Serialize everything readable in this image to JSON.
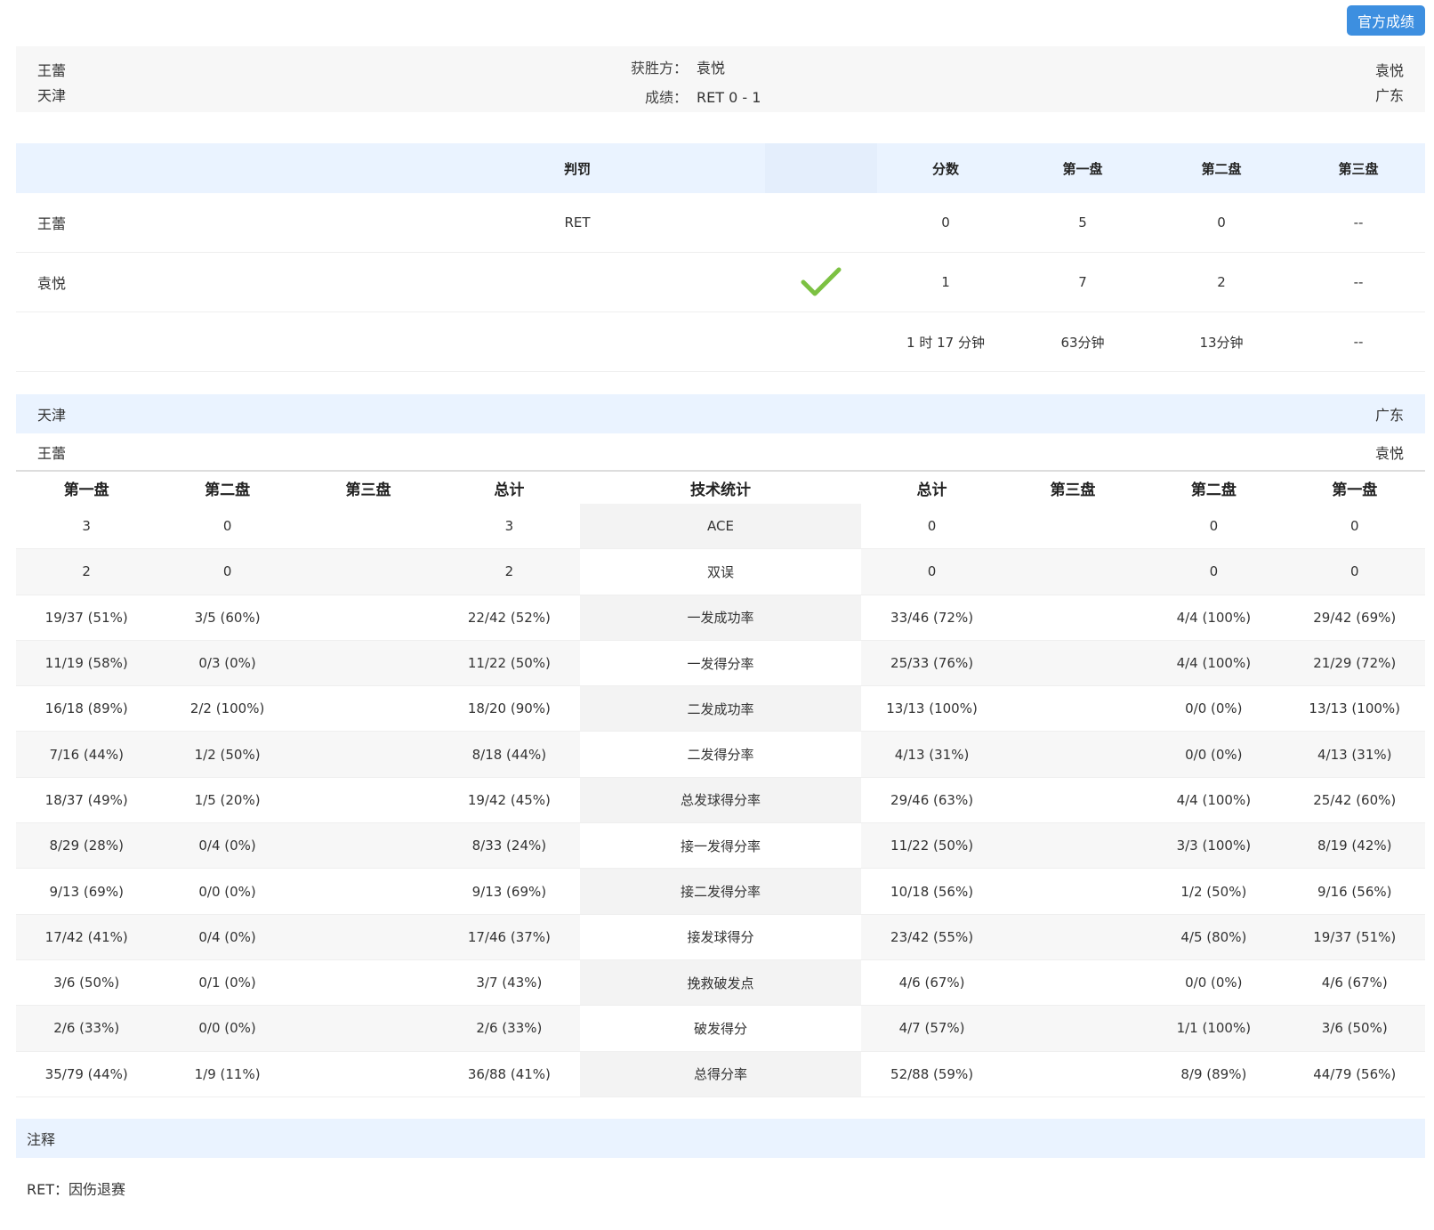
{
  "header": {
    "official_button": "官方成绩"
  },
  "summary": {
    "left_player": "王蕾",
    "left_team": "天津",
    "right_player": "袁悦",
    "right_team": "广东",
    "winner_label": "获胜方：",
    "winner_value": "袁悦",
    "result_label": "成绩：",
    "result_value": "RET 0 - 1"
  },
  "score_table": {
    "headers": {
      "penalty": "判罚",
      "points": "分数",
      "set1": "第一盘",
      "set2": "第二盘",
      "set3": "第三盘"
    },
    "rows": [
      {
        "name": "王蕾",
        "penalty": "RET",
        "points": "0",
        "set1": "5",
        "set2": "0",
        "set3": "--",
        "winner": false
      },
      {
        "name": "袁悦",
        "penalty": "",
        "points": "1",
        "set1": "7",
        "set2": "2",
        "set3": "--",
        "winner": true
      }
    ],
    "durations": {
      "total": "1 时 17 分钟",
      "set1": "63分钟",
      "set2": "13分钟",
      "set3": "--"
    },
    "check_color": "#7cc142"
  },
  "stats": {
    "left_team": "天津",
    "right_team": "广东",
    "left_player": "王蕾",
    "right_player": "袁悦",
    "headers": [
      "第一盘",
      "第二盘",
      "第三盘",
      "总计",
      "技术统计",
      "总计",
      "第三盘",
      "第二盘",
      "第一盘"
    ],
    "rows": [
      [
        "3",
        "0",
        "",
        "3",
        "ACE",
        "0",
        "",
        "0",
        "0"
      ],
      [
        "2",
        "0",
        "",
        "2",
        "双误",
        "0",
        "",
        "0",
        "0"
      ],
      [
        "19/37 (51%)",
        "3/5 (60%)",
        "",
        "22/42 (52%)",
        "一发成功率",
        "33/46 (72%)",
        "",
        "4/4 (100%)",
        "29/42 (69%)"
      ],
      [
        "11/19 (58%)",
        "0/3 (0%)",
        "",
        "11/22 (50%)",
        "一发得分率",
        "25/33 (76%)",
        "",
        "4/4 (100%)",
        "21/29 (72%)"
      ],
      [
        "16/18 (89%)",
        "2/2 (100%)",
        "",
        "18/20 (90%)",
        "二发成功率",
        "13/13 (100%)",
        "",
        "0/0 (0%)",
        "13/13 (100%)"
      ],
      [
        "7/16 (44%)",
        "1/2 (50%)",
        "",
        "8/18 (44%)",
        "二发得分率",
        "4/13 (31%)",
        "",
        "0/0 (0%)",
        "4/13 (31%)"
      ],
      [
        "18/37 (49%)",
        "1/5 (20%)",
        "",
        "19/42 (45%)",
        "总发球得分率",
        "29/46 (63%)",
        "",
        "4/4 (100%)",
        "25/42 (60%)"
      ],
      [
        "8/29 (28%)",
        "0/4 (0%)",
        "",
        "8/33 (24%)",
        "接一发得分率",
        "11/22 (50%)",
        "",
        "3/3 (100%)",
        "8/19 (42%)"
      ],
      [
        "9/13 (69%)",
        "0/0 (0%)",
        "",
        "9/13 (69%)",
        "接二发得分率",
        "10/18 (56%)",
        "",
        "1/2 (50%)",
        "9/16 (56%)"
      ],
      [
        "17/42 (41%)",
        "0/4 (0%)",
        "",
        "17/46 (37%)",
        "接发球得分",
        "23/42 (55%)",
        "",
        "4/5 (80%)",
        "19/37 (51%)"
      ],
      [
        "3/6 (50%)",
        "0/1 (0%)",
        "",
        "3/7 (43%)",
        "挽救破发点",
        "4/6 (67%)",
        "",
        "0/0 (0%)",
        "4/6 (67%)"
      ],
      [
        "2/6 (33%)",
        "0/0 (0%)",
        "",
        "2/6 (33%)",
        "破发得分",
        "4/7 (57%)",
        "",
        "1/1 (100%)",
        "3/6 (50%)"
      ],
      [
        "35/79 (44%)",
        "1/9 (11%)",
        "",
        "36/88 (41%)",
        "总得分率",
        "52/88 (59%)",
        "",
        "8/9 (89%)",
        "44/79 (56%)"
      ]
    ]
  },
  "notes": {
    "title": "注释",
    "text": "RET：因伤退赛"
  },
  "colors": {
    "accent": "#3d8fe0",
    "header_bg": "#eaf3ff",
    "summary_bg": "#f7f7f7"
  }
}
